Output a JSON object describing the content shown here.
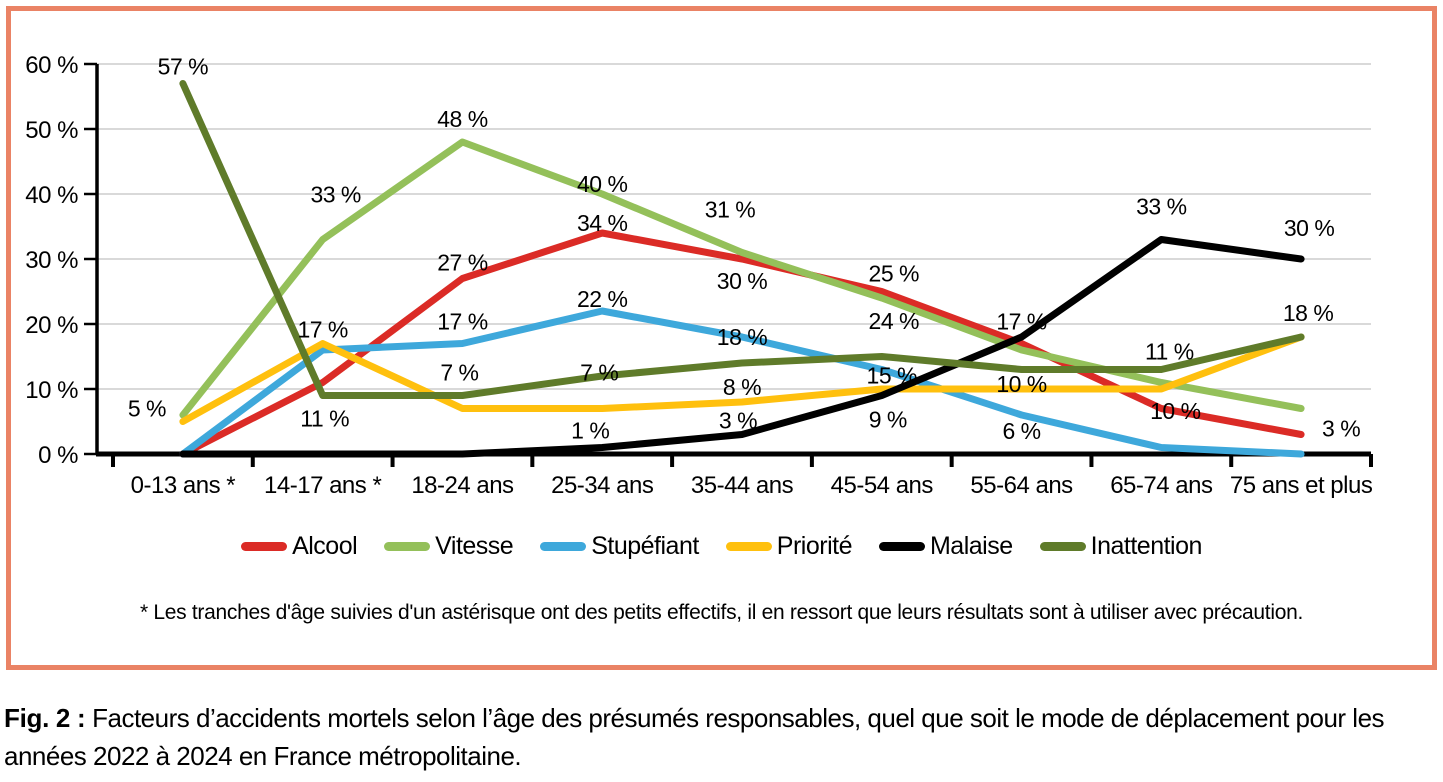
{
  "figure": {
    "border_color": "#EA8365",
    "footnote": "* Les tranches d'âge suivies d'un astérisque ont des petits effectifs, il en ressort que leurs résultats sont à utiliser avec précaution.",
    "caption_label": "Fig. 2 :",
    "caption_text": " Facteurs d’accidents mortels selon l’âge des présumés responsables, quel que soit le mode de déplacement pour les années 2022 à 2024 en France métropolitaine."
  },
  "chart_data": {
    "type": "line",
    "title": "",
    "xlabel": "",
    "ylabel": "",
    "unit": "%",
    "ylim": [
      0,
      60
    ],
    "y_step": 10,
    "grid": true,
    "grid_color": "#D9D9D9",
    "axis_color": "#000000",
    "legend_position": "bottom",
    "y_tick_labels": [
      "0 %",
      "10 %",
      "20 %",
      "30 %",
      "40 %",
      "50 %",
      "60 %"
    ],
    "categories": [
      "0-13 ans *",
      "14-17 ans *",
      "18-24 ans",
      "25-34 ans",
      "35-44 ans",
      "45-54 ans",
      "55-64 ans",
      "65-74 ans",
      "75 ans et plus"
    ],
    "series": [
      {
        "name": "Alcool",
        "color": "#DB2B26",
        "values": [
          0,
          11,
          27,
          34,
          30,
          25,
          17,
          7,
          3
        ],
        "labels": [
          {
            "i": 1,
            "text": "11 %",
            "dx": 2,
            "dy": 44
          },
          {
            "i": 2,
            "text": "27 %",
            "dx": 0,
            "dy": -8
          },
          {
            "i": 3,
            "text": "34 %",
            "dx": 0,
            "dy": -2
          },
          {
            "i": 4,
            "text": "30 %",
            "dx": 0,
            "dy": 30
          },
          {
            "i": 5,
            "text": "25 %",
            "dx": 12,
            "dy": -10
          },
          {
            "i": 6,
            "text": "17 %",
            "dx": 0,
            "dy": -14
          },
          {
            "i": 8,
            "text": "3 %",
            "dx": 40,
            "dy": 2
          }
        ]
      },
      {
        "name": "Vitesse",
        "color": "#94C05A",
        "values": [
          6,
          33,
          48,
          40,
          31,
          24,
          16,
          11,
          7
        ],
        "labels": [
          {
            "i": 1,
            "text": "33 %",
            "dx": 13,
            "dy": -37
          },
          {
            "i": 2,
            "text": "48 %",
            "dx": 0,
            "dy": -15
          },
          {
            "i": 3,
            "text": "40 %",
            "dx": 0,
            "dy": -2
          },
          {
            "i": 4,
            "text": "31 %",
            "dx": -12,
            "dy": -35
          },
          {
            "i": 5,
            "text": "24 %",
            "dx": 12,
            "dy": 31
          },
          {
            "i": 7,
            "text": "11 %",
            "dx": 8,
            "dy": -23
          }
        ]
      },
      {
        "name": "Stupéfiant",
        "color": "#3EA8DB",
        "values": [
          0,
          16,
          17,
          22,
          18,
          13,
          6,
          1,
          0
        ],
        "labels": [
          {
            "i": 2,
            "text": "17 %",
            "dx": 0,
            "dy": -14
          },
          {
            "i": 3,
            "text": "22 %",
            "dx": 0,
            "dy": -4
          },
          {
            "i": 4,
            "text": "18 %",
            "dx": 0,
            "dy": 8
          },
          {
            "i": 6,
            "text": "6 %",
            "dx": 0,
            "dy": 24
          }
        ]
      },
      {
        "name": "Priorité",
        "color": "#FFC00E",
        "values": [
          5,
          17,
          7,
          7,
          8,
          10,
          10,
          10,
          18
        ],
        "labels": [
          {
            "i": 0,
            "text": "5 %",
            "dx": -36,
            "dy": -5
          },
          {
            "i": 1,
            "text": "17 %",
            "dx": 0,
            "dy": -6
          },
          {
            "i": 2,
            "text": "7 %",
            "dx": -3,
            "dy": -28
          },
          {
            "i": 3,
            "text": "7 %",
            "dx": -3,
            "dy": -28
          },
          {
            "i": 4,
            "text": "8 %",
            "dx": 0,
            "dy": -7
          },
          {
            "i": 6,
            "text": "10 %",
            "dx": 0,
            "dy": 3
          },
          {
            "i": 7,
            "text": "10 %",
            "dx": 14,
            "dy": 30
          }
        ]
      },
      {
        "name": "Malaise",
        "color": "#000000",
        "values": [
          0,
          0,
          0,
          1,
          3,
          9,
          18,
          33,
          30
        ],
        "labels": [
          {
            "i": 3,
            "text": "1 %",
            "dx": -12,
            "dy": -9
          },
          {
            "i": 4,
            "text": "3 %",
            "dx": -4,
            "dy": -6
          },
          {
            "i": 5,
            "text": "9 %",
            "dx": 6,
            "dy": 32
          },
          {
            "i": 7,
            "text": "33 %",
            "dx": 0,
            "dy": -25
          },
          {
            "i": 8,
            "text": "30 %",
            "dx": 8,
            "dy": -23
          }
        ]
      },
      {
        "name": "Inattention",
        "color": "#5F7B2A",
        "values": [
          57,
          9,
          9,
          12,
          14,
          15,
          13,
          13,
          18
        ],
        "labels": [
          {
            "i": 0,
            "text": "57 %",
            "dx": 0,
            "dy": -9
          },
          {
            "i": 5,
            "text": "15 %",
            "dx": 10,
            "dy": 27
          },
          {
            "i": 8,
            "text": "18 %",
            "dx": 7,
            "dy": -16
          }
        ]
      }
    ]
  }
}
